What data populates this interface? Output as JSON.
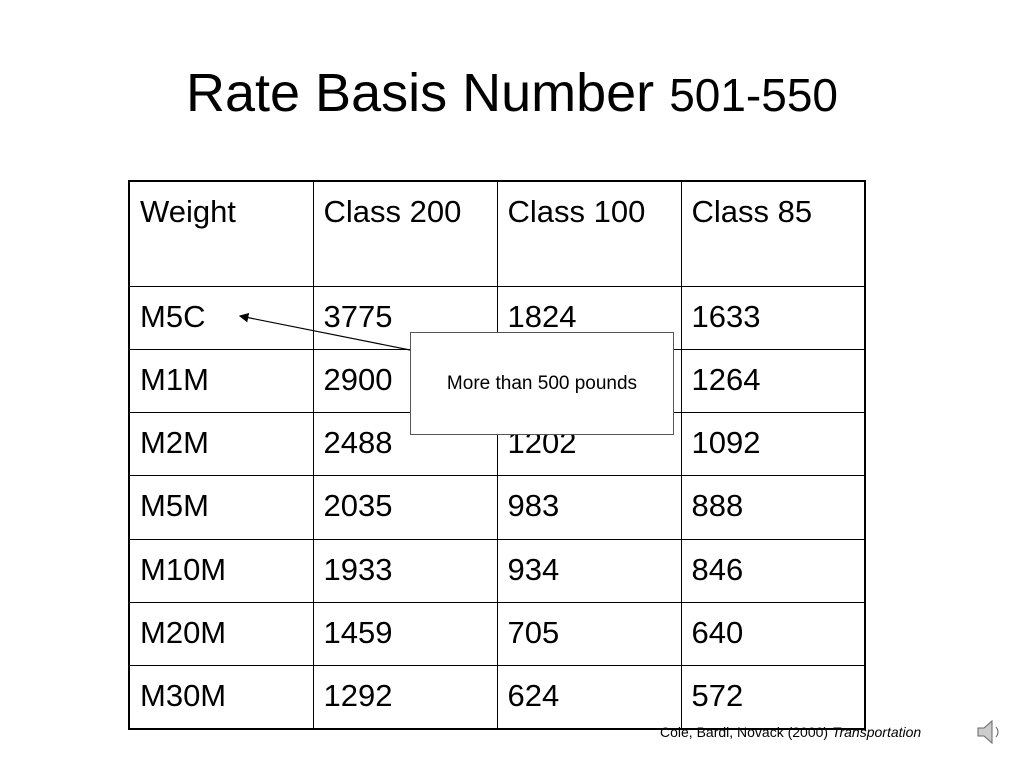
{
  "title": {
    "text": "Rate Basis Number",
    "number": "501-550"
  },
  "table": {
    "header": [
      "Weight",
      "Class 200",
      "Class 100",
      "Class 85"
    ],
    "rows": [
      [
        "M5C",
        "3775",
        "1824",
        "1633"
      ],
      [
        "M1M",
        "2900",
        null,
        "1264"
      ],
      [
        "M2M",
        "2488",
        "1202",
        "1092"
      ],
      [
        "M5M",
        "2035",
        "983",
        "888"
      ],
      [
        "M10M",
        "1933",
        "934",
        "846"
      ],
      [
        "M20M",
        "1459",
        "705",
        "640"
      ],
      [
        "M30M",
        "1292",
        "624",
        "572"
      ]
    ]
  },
  "callout": "More than 500 pounds",
  "footer": {
    "authors": "Cole, Bardi, Novack (2000)",
    "work": "Transportation"
  }
}
